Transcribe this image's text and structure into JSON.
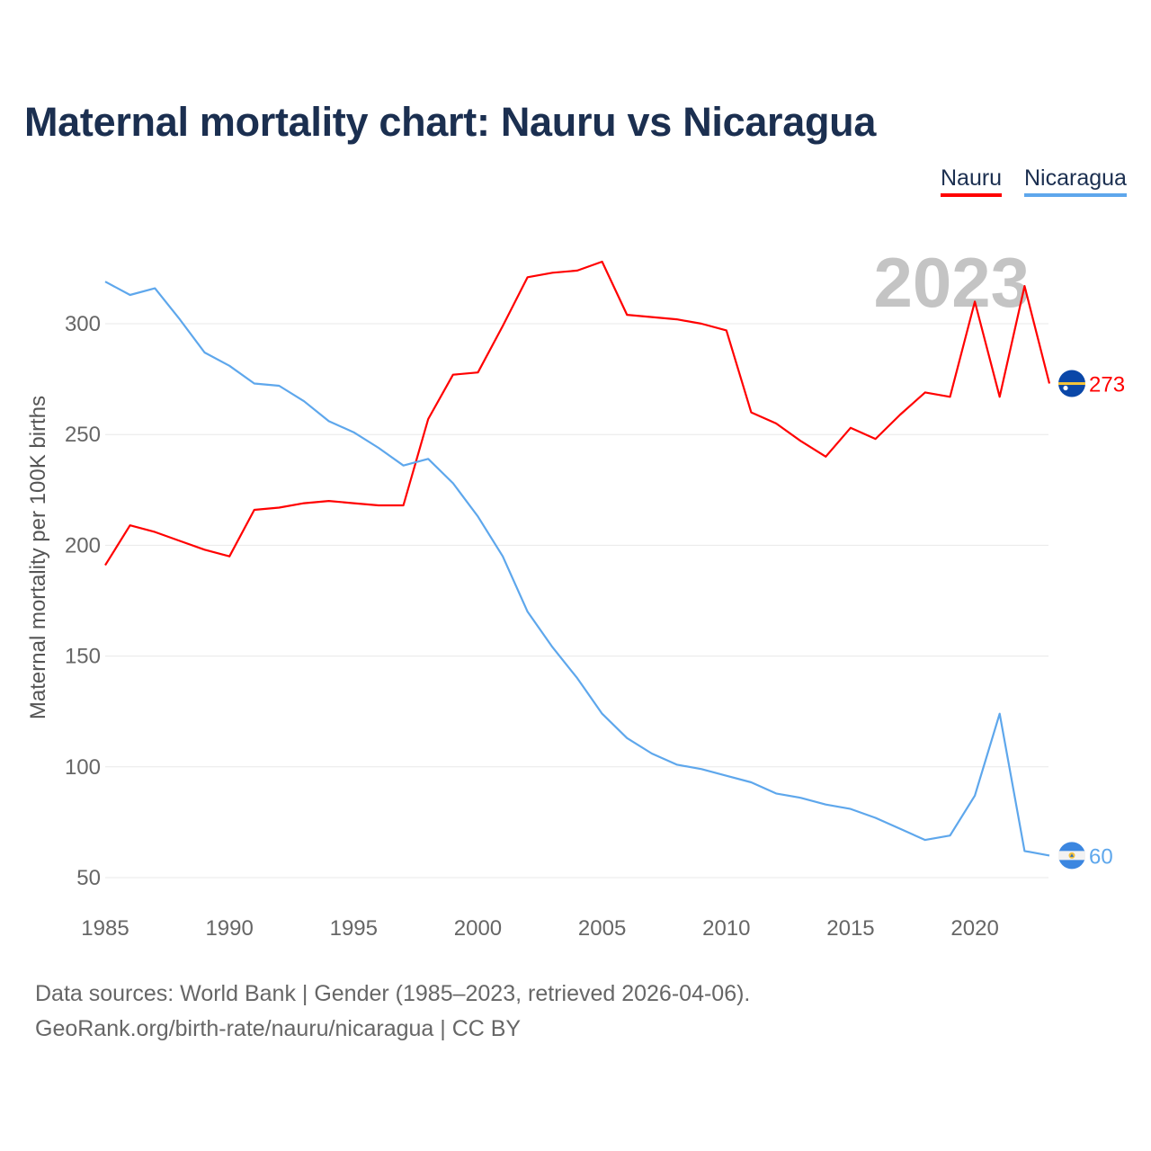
{
  "title": "Maternal mortality chart: Nauru vs Nicaragua",
  "footer": {
    "line1": "Data sources: World Bank | Gender (1985–2023, retrieved 2026-04-06).",
    "line2": "GeoRank.org/birth-rate/nauru/nicaragua | CC BY"
  },
  "chart_data": {
    "type": "line",
    "title": "Maternal mortality chart: Nauru vs Nicaragua",
    "xlabel": "",
    "ylabel": "Maternal mortality per 100K births",
    "xlim": [
      1985,
      2023
    ],
    "ylim": [
      50,
      300
    ],
    "x_ticks": [
      "1985",
      "1990",
      "1995",
      "2000",
      "2005",
      "2010",
      "2015",
      "2020"
    ],
    "y_ticks": [
      "50",
      "100",
      "150",
      "200",
      "250",
      "300"
    ],
    "grid": true,
    "year_watermark": "2023",
    "legend_position": "top-right",
    "x": [
      1985,
      1986,
      1987,
      1988,
      1989,
      1990,
      1991,
      1992,
      1993,
      1994,
      1995,
      1996,
      1997,
      1998,
      1999,
      2000,
      2001,
      2002,
      2003,
      2004,
      2005,
      2006,
      2007,
      2008,
      2009,
      2010,
      2011,
      2012,
      2013,
      2014,
      2015,
      2016,
      2017,
      2018,
      2019,
      2020,
      2021,
      2022,
      2023
    ],
    "series": [
      {
        "name": "Nauru",
        "color": "#ff0000",
        "end_label": "273",
        "flag": "nauru-flag",
        "values": [
          191,
          209,
          206,
          202,
          198,
          195,
          216,
          217,
          219,
          220,
          219,
          218,
          218,
          257,
          277,
          278,
          299,
          321,
          323,
          324,
          328,
          304,
          303,
          302,
          300,
          297,
          260,
          255,
          247,
          240,
          253,
          248,
          259,
          269,
          267,
          310,
          267,
          317,
          273
        ]
      },
      {
        "name": "Nicaragua",
        "color": "#5ea7ec",
        "end_label": "60",
        "flag": "nicaragua-flag",
        "values": [
          319,
          313,
          316,
          302,
          287,
          281,
          273,
          272,
          265,
          256,
          251,
          244,
          236,
          239,
          228,
          213,
          195,
          170,
          154,
          140,
          124,
          113,
          106,
          101,
          99,
          96,
          93,
          88,
          86,
          83,
          81,
          77,
          72,
          67,
          69,
          87,
          124,
          62,
          60
        ]
      }
    ]
  }
}
